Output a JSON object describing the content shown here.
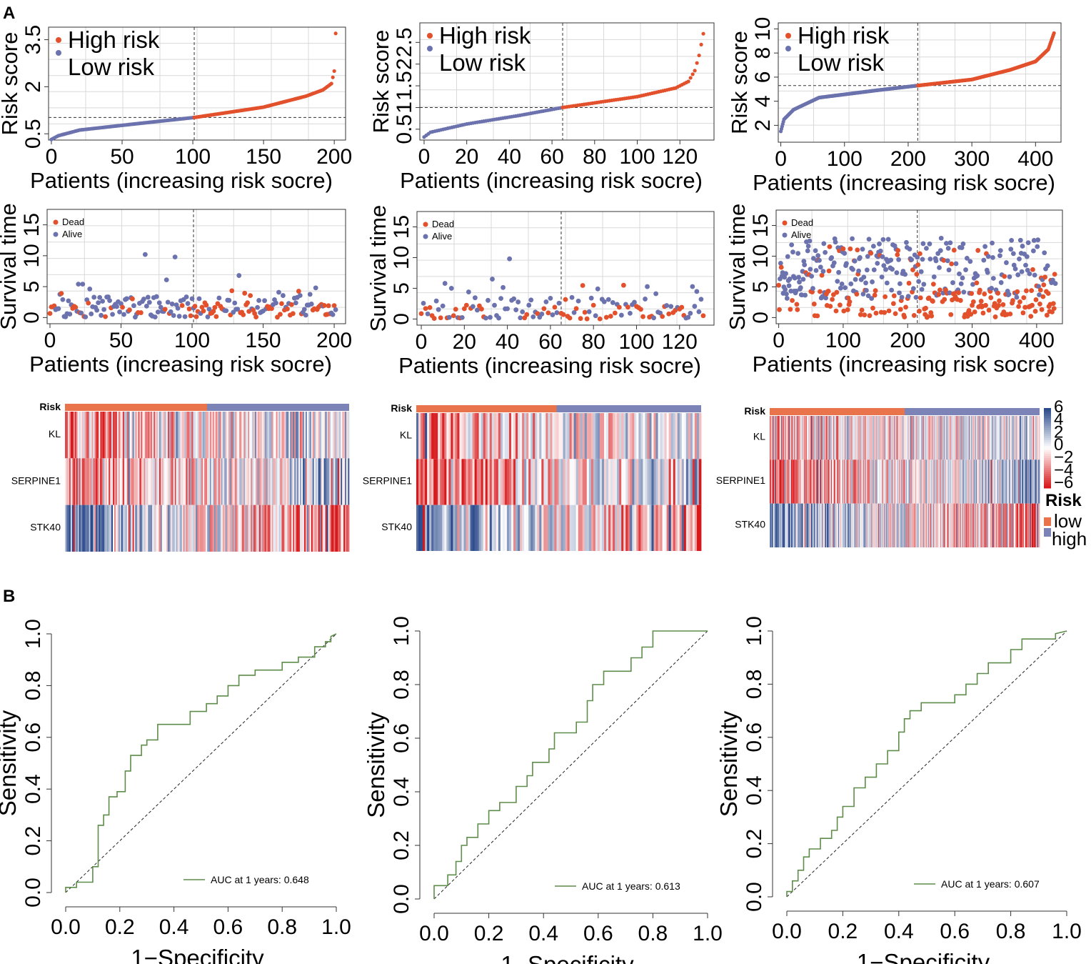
{
  "panel_labels": {
    "a": "A",
    "b": "B"
  },
  "text": {
    "xlabel_patients": "Patients (increasing risk socre)",
    "ylabel_score": "Risk score",
    "ylabel_time": "Survival time",
    "legend_high": "High risk",
    "legend_low": "Low risk",
    "legend_dead": "Dead",
    "legend_alive": "Alive",
    "heat_risk_label": "Risk",
    "genes": [
      "KL",
      "SERPINE1",
      "STK40"
    ],
    "colorbar_ticks": [
      "6",
      "4",
      "2",
      "0",
      "−2",
      "−4",
      "−6"
    ],
    "risk_legend_title": "Risk",
    "risk_legend_low": "low",
    "risk_legend_high": "high",
    "roc_xlabel": "1−Specificity",
    "roc_ylabel": "Sensitivity"
  },
  "colors": {
    "high": "#e2502c",
    "low": "#6b72ad",
    "heat_red": "#d7191c",
    "heat_blue": "#2b4a8b",
    "roc": "#5e8c4a",
    "bar_orange": "#e9734a",
    "bar_blue": "#7c84b7"
  },
  "chart_data": [
    {
      "type": "scatter",
      "id": "score1",
      "n": 202,
      "cutoff": 101,
      "threshold": 1.02,
      "ylim": [
        0.3,
        3.9
      ],
      "yticks": [
        0.5,
        2,
        3.5
      ],
      "xticks": [
        0,
        50,
        100,
        150,
        200
      ],
      "xlim": [
        -2,
        208
      ],
      "title": "",
      "xlabel": "Patients (increasing risk socre)",
      "ylabel": "Risk score",
      "curve": [
        [
          0,
          0.32
        ],
        [
          5,
          0.44
        ],
        [
          20,
          0.62
        ],
        [
          60,
          0.82
        ],
        [
          101,
          1.02
        ],
        [
          150,
          1.35
        ],
        [
          180,
          1.7
        ],
        [
          192,
          1.9
        ],
        [
          198,
          2.1
        ],
        [
          200,
          2.5
        ],
        [
          201,
          3.7
        ]
      ]
    },
    {
      "type": "scatter",
      "id": "score2",
      "n": 132,
      "cutoff": 65,
      "threshold": 1.0,
      "ylim": [
        0.25,
        2.95
      ],
      "yticks": [
        0.5,
        1,
        1.5,
        2,
        2.5
      ],
      "xticks": [
        0,
        20,
        40,
        60,
        80,
        100,
        120
      ],
      "xlim": [
        -2,
        136
      ],
      "title": "",
      "xlabel": "Patients (increasing risk socre)",
      "ylabel": "Risk score",
      "curve": [
        [
          0,
          0.32
        ],
        [
          3,
          0.43
        ],
        [
          20,
          0.62
        ],
        [
          45,
          0.82
        ],
        [
          65,
          1.0
        ],
        [
          100,
          1.25
        ],
        [
          118,
          1.45
        ],
        [
          124,
          1.6
        ],
        [
          127,
          1.85
        ],
        [
          129,
          2.2
        ],
        [
          131,
          2.7
        ]
      ]
    },
    {
      "type": "scatter",
      "id": "score3",
      "n": 430,
      "cutoff": 215,
      "threshold": 5.3,
      "ylim": [
        0.6,
        10.5
      ],
      "yticks": [
        2,
        4,
        6,
        8,
        10
      ],
      "xticks": [
        0,
        100,
        200,
        300,
        400
      ],
      "xlim": [
        -4,
        440
      ],
      "title": "",
      "xlabel": "Patients (increasing risk socre)",
      "ylabel": "Risk score",
      "curve": [
        [
          0,
          1.5
        ],
        [
          5,
          2.5
        ],
        [
          20,
          3.3
        ],
        [
          60,
          4.3
        ],
        [
          150,
          4.9
        ],
        [
          215,
          5.3
        ],
        [
          300,
          5.8
        ],
        [
          360,
          6.6
        ],
        [
          400,
          7.3
        ],
        [
          420,
          8.3
        ],
        [
          430,
          9.8
        ]
      ]
    },
    {
      "type": "scatter",
      "id": "surv1",
      "n": 202,
      "cutoff": 101,
      "seed": 11,
      "ylim": [
        -1,
        17.5
      ],
      "yticks": [
        0,
        5,
        10,
        15
      ],
      "ytick_labels": [
        "0",
        "5",
        "10",
        "15"
      ],
      "xticks": [
        0,
        50,
        100,
        150,
        200
      ],
      "xlim": [
        -2,
        208
      ],
      "xlabel": "Patients (increasing risk socre)",
      "ylabel": "Survival time",
      "highlights": [
        [
          67,
          10.2
        ],
        [
          88,
          9.8
        ],
        [
          133,
          6.8
        ],
        [
          82,
          6.1
        ],
        [
          20,
          5.4
        ],
        [
          23,
          5.4
        ],
        [
          187,
          4.8
        ]
      ]
    },
    {
      "type": "scatter",
      "id": "surv2",
      "n": 132,
      "cutoff": 65,
      "seed": 23,
      "ylim": [
        -1,
        17.5
      ],
      "yticks": [
        0,
        5,
        10,
        15
      ],
      "ytick_labels": [
        "0",
        "5",
        "10",
        "15"
      ],
      "xticks": [
        0,
        20,
        40,
        60,
        80,
        100,
        120
      ],
      "xlim": [
        -2,
        136
      ],
      "xlabel": "Patients (increasing risk socre)",
      "ylabel": "Survival time",
      "highlights": [
        [
          41,
          9.8
        ],
        [
          11,
          5.8
        ],
        [
          33,
          6.5
        ],
        [
          82,
          4.9
        ],
        [
          14,
          5.0
        ]
      ]
    },
    {
      "type": "scatter",
      "id": "surv3",
      "n": 430,
      "cutoff": 215,
      "seed": 37,
      "ylim": [
        -1,
        17.5
      ],
      "yticks": [
        0,
        5,
        10,
        15
      ],
      "ytick_labels": [
        "0",
        "5",
        "10",
        "15"
      ],
      "xticks": [
        0,
        100,
        200,
        300,
        400
      ],
      "xlim": [
        -4,
        440
      ],
      "xlabel": "Patients (increasing risk socre)",
      "ylabel": "Survival time",
      "highlights": []
    },
    {
      "type": "heatmap",
      "id": "heat1",
      "n": 202,
      "cutoff": 101,
      "seed": 5,
      "genes": [
        "KL",
        "SERPINE1",
        "STK40"
      ]
    },
    {
      "type": "heatmap",
      "id": "heat2",
      "n": 132,
      "cutoff": 65,
      "seed": 9,
      "genes": [
        "KL",
        "SERPINE1",
        "STK40"
      ]
    },
    {
      "type": "heatmap",
      "id": "heat3",
      "n": 430,
      "cutoff": 215,
      "seed": 17,
      "genes": [
        "KL",
        "SERPINE1",
        "STK40"
      ]
    },
    {
      "type": "line",
      "id": "roc1",
      "auc_label": "AUC at 1 years: 0.648",
      "xlim": [
        0,
        1
      ],
      "ylim": [
        0,
        1
      ],
      "ticks": [
        0,
        0.2,
        0.4,
        0.6,
        0.8,
        1
      ],
      "tick_labels": [
        "0.0",
        "0.2",
        "0.4",
        "0.6",
        "0.8",
        "1.0"
      ],
      "xlabel": "1−Specificity",
      "ylabel": "Sensitivity",
      "points": [
        [
          0,
          0
        ],
        [
          0,
          0.02
        ],
        [
          0.04,
          0.02
        ],
        [
          0.04,
          0.04
        ],
        [
          0.1,
          0.04
        ],
        [
          0.1,
          0.1
        ],
        [
          0.12,
          0.1
        ],
        [
          0.12,
          0.26
        ],
        [
          0.14,
          0.26
        ],
        [
          0.14,
          0.3
        ],
        [
          0.16,
          0.3
        ],
        [
          0.16,
          0.37
        ],
        [
          0.19,
          0.37
        ],
        [
          0.19,
          0.39
        ],
        [
          0.22,
          0.39
        ],
        [
          0.22,
          0.47
        ],
        [
          0.24,
          0.47
        ],
        [
          0.24,
          0.53
        ],
        [
          0.28,
          0.53
        ],
        [
          0.28,
          0.57
        ],
        [
          0.3,
          0.57
        ],
        [
          0.3,
          0.59
        ],
        [
          0.34,
          0.59
        ],
        [
          0.34,
          0.65
        ],
        [
          0.46,
          0.65
        ],
        [
          0.46,
          0.7
        ],
        [
          0.52,
          0.7
        ],
        [
          0.52,
          0.73
        ],
        [
          0.56,
          0.73
        ],
        [
          0.56,
          0.76
        ],
        [
          0.6,
          0.76
        ],
        [
          0.6,
          0.8
        ],
        [
          0.64,
          0.8
        ],
        [
          0.64,
          0.84
        ],
        [
          0.7,
          0.84
        ],
        [
          0.7,
          0.86
        ],
        [
          0.8,
          0.86
        ],
        [
          0.8,
          0.89
        ],
        [
          0.86,
          0.89
        ],
        [
          0.86,
          0.91
        ],
        [
          0.92,
          0.91
        ],
        [
          0.92,
          0.95
        ],
        [
          0.96,
          0.95
        ],
        [
          0.96,
          0.97
        ],
        [
          0.98,
          0.97
        ],
        [
          0.98,
          0.99
        ],
        [
          1,
          1
        ]
      ]
    },
    {
      "type": "line",
      "id": "roc2",
      "auc_label": "AUC at 1 years: 0.613",
      "xlim": [
        0,
        1
      ],
      "ylim": [
        0,
        1
      ],
      "ticks": [
        0,
        0.2,
        0.4,
        0.6,
        0.8,
        1
      ],
      "tick_labels": [
        "0.0",
        "0.2",
        "0.4",
        "0.6",
        "0.8",
        "1.0"
      ],
      "xlabel": "1−Specificity",
      "ylabel": "Sensitivity",
      "points": [
        [
          0,
          0
        ],
        [
          0,
          0.05
        ],
        [
          0.05,
          0.05
        ],
        [
          0.05,
          0.09
        ],
        [
          0.08,
          0.09
        ],
        [
          0.08,
          0.14
        ],
        [
          0.1,
          0.14
        ],
        [
          0.1,
          0.2
        ],
        [
          0.12,
          0.2
        ],
        [
          0.12,
          0.23
        ],
        [
          0.16,
          0.23
        ],
        [
          0.16,
          0.28
        ],
        [
          0.2,
          0.28
        ],
        [
          0.2,
          0.33
        ],
        [
          0.24,
          0.33
        ],
        [
          0.24,
          0.36
        ],
        [
          0.3,
          0.36
        ],
        [
          0.3,
          0.42
        ],
        [
          0.34,
          0.42
        ],
        [
          0.34,
          0.46
        ],
        [
          0.36,
          0.46
        ],
        [
          0.36,
          0.51
        ],
        [
          0.42,
          0.51
        ],
        [
          0.42,
          0.56
        ],
        [
          0.44,
          0.56
        ],
        [
          0.44,
          0.62
        ],
        [
          0.52,
          0.62
        ],
        [
          0.52,
          0.66
        ],
        [
          0.56,
          0.66
        ],
        [
          0.56,
          0.74
        ],
        [
          0.58,
          0.74
        ],
        [
          0.58,
          0.8
        ],
        [
          0.62,
          0.8
        ],
        [
          0.62,
          0.85
        ],
        [
          0.72,
          0.85
        ],
        [
          0.72,
          0.9
        ],
        [
          0.76,
          0.9
        ],
        [
          0.76,
          0.94
        ],
        [
          0.8,
          0.94
        ],
        [
          0.8,
          1
        ],
        [
          1,
          1
        ]
      ]
    },
    {
      "type": "line",
      "id": "roc3",
      "auc_label": "AUC at 1 years: 0.607",
      "xlim": [
        0,
        1
      ],
      "ylim": [
        0,
        1
      ],
      "ticks": [
        0,
        0.2,
        0.4,
        0.6,
        0.8,
        1
      ],
      "tick_labels": [
        "0.0",
        "0.2",
        "0.4",
        "0.6",
        "0.8",
        "1.0"
      ],
      "xlabel": "1−Specificity",
      "ylabel": "Sensitivity",
      "points": [
        [
          0,
          0
        ],
        [
          0,
          0.02
        ],
        [
          0.02,
          0.02
        ],
        [
          0.02,
          0.06
        ],
        [
          0.04,
          0.06
        ],
        [
          0.04,
          0.1
        ],
        [
          0.06,
          0.1
        ],
        [
          0.06,
          0.15
        ],
        [
          0.08,
          0.15
        ],
        [
          0.08,
          0.18
        ],
        [
          0.12,
          0.18
        ],
        [
          0.12,
          0.22
        ],
        [
          0.16,
          0.22
        ],
        [
          0.16,
          0.25
        ],
        [
          0.18,
          0.25
        ],
        [
          0.18,
          0.3
        ],
        [
          0.2,
          0.3
        ],
        [
          0.2,
          0.34
        ],
        [
          0.24,
          0.34
        ],
        [
          0.24,
          0.41
        ],
        [
          0.28,
          0.41
        ],
        [
          0.28,
          0.45
        ],
        [
          0.32,
          0.45
        ],
        [
          0.32,
          0.5
        ],
        [
          0.36,
          0.5
        ],
        [
          0.36,
          0.55
        ],
        [
          0.4,
          0.55
        ],
        [
          0.4,
          0.62
        ],
        [
          0.42,
          0.62
        ],
        [
          0.42,
          0.67
        ],
        [
          0.44,
          0.67
        ],
        [
          0.44,
          0.7
        ],
        [
          0.48,
          0.7
        ],
        [
          0.48,
          0.73
        ],
        [
          0.6,
          0.73
        ],
        [
          0.6,
          0.76
        ],
        [
          0.64,
          0.76
        ],
        [
          0.64,
          0.8
        ],
        [
          0.68,
          0.8
        ],
        [
          0.68,
          0.84
        ],
        [
          0.72,
          0.84
        ],
        [
          0.72,
          0.88
        ],
        [
          0.8,
          0.88
        ],
        [
          0.8,
          0.93
        ],
        [
          0.84,
          0.93
        ],
        [
          0.84,
          0.97
        ],
        [
          0.96,
          0.97
        ],
        [
          0.96,
          0.99
        ],
        [
          1,
          1
        ]
      ]
    }
  ]
}
